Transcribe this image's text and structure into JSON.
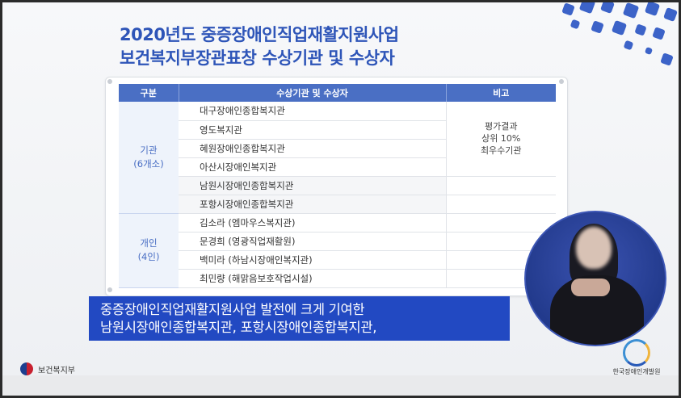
{
  "title": {
    "line1": "2020년도 중증장애인직업재활지원사업",
    "line2": "보건복지부장관표창 수상기관 및 수상자"
  },
  "table": {
    "headers": [
      "구분",
      "수상기관 및 수상자",
      "비고"
    ],
    "institutions": {
      "group_label": "기관",
      "group_count": "(6개소)",
      "rows": [
        "대구장애인종합복지관",
        "영도복지관",
        "혜원장애인종합복지관",
        "아산시장애인복지관",
        "남원시장애인종합복지관",
        "포항시장애인종합복지관"
      ],
      "note_line1": "평가결과",
      "note_line2": "상위 10%",
      "note_line3": "최우수기관"
    },
    "individuals": {
      "group_label": "개인",
      "group_count": "(4인)",
      "rows": [
        "김소라 (엠마우스복지관)",
        "문경희 (영광직업재활원)",
        "백미라 (하남시장애인복지관)",
        "최민량 (해맑음보호작업시설)"
      ]
    }
  },
  "caption": {
    "line1": "중증장애인직업재활지원사업 발전에 크게 기여한",
    "line2": "남원시장애인종합복지관, 포항시장애인종합복지관,"
  },
  "footer": {
    "left_logo_text": "보건복지부",
    "right_logo_text": "한국장애인개발원"
  },
  "colors": {
    "title": "#2e55b8",
    "table_header": "#4a6fc4",
    "caption_bg": "#2249c2"
  }
}
